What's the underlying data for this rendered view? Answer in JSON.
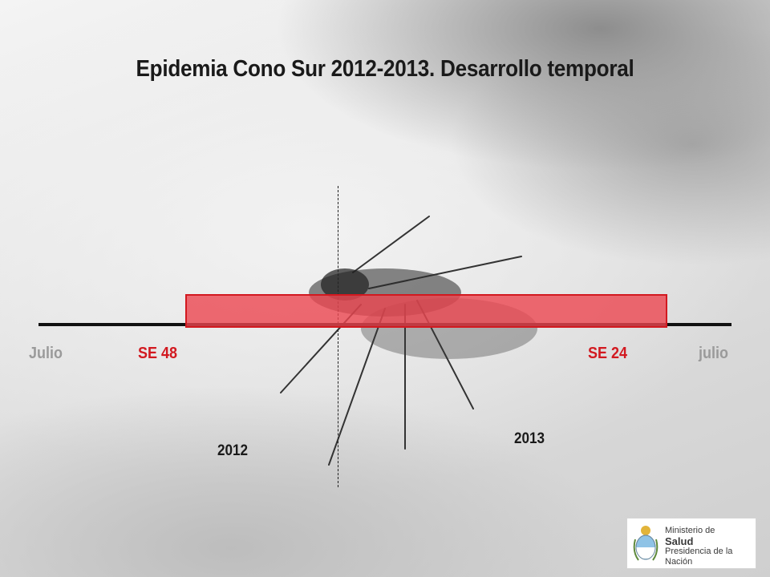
{
  "title": "Epidemia Cono Sur 2012-2013. Desarrollo temporal",
  "timeline": {
    "start_label": "Julio",
    "end_label": "julio",
    "epidemic_start": "SE 48",
    "epidemic_end": "SE 24",
    "year_left": "2012",
    "year_right": "2013"
  },
  "logo": {
    "line1": "Ministerio de",
    "line2": "Salud",
    "line3": "Presidencia de la Nación"
  },
  "colors": {
    "epidemic_fill": "#ec4650",
    "epidemic_border": "#d21920",
    "week_labels": "#d21920",
    "month_labels": "#9a9a9a"
  }
}
